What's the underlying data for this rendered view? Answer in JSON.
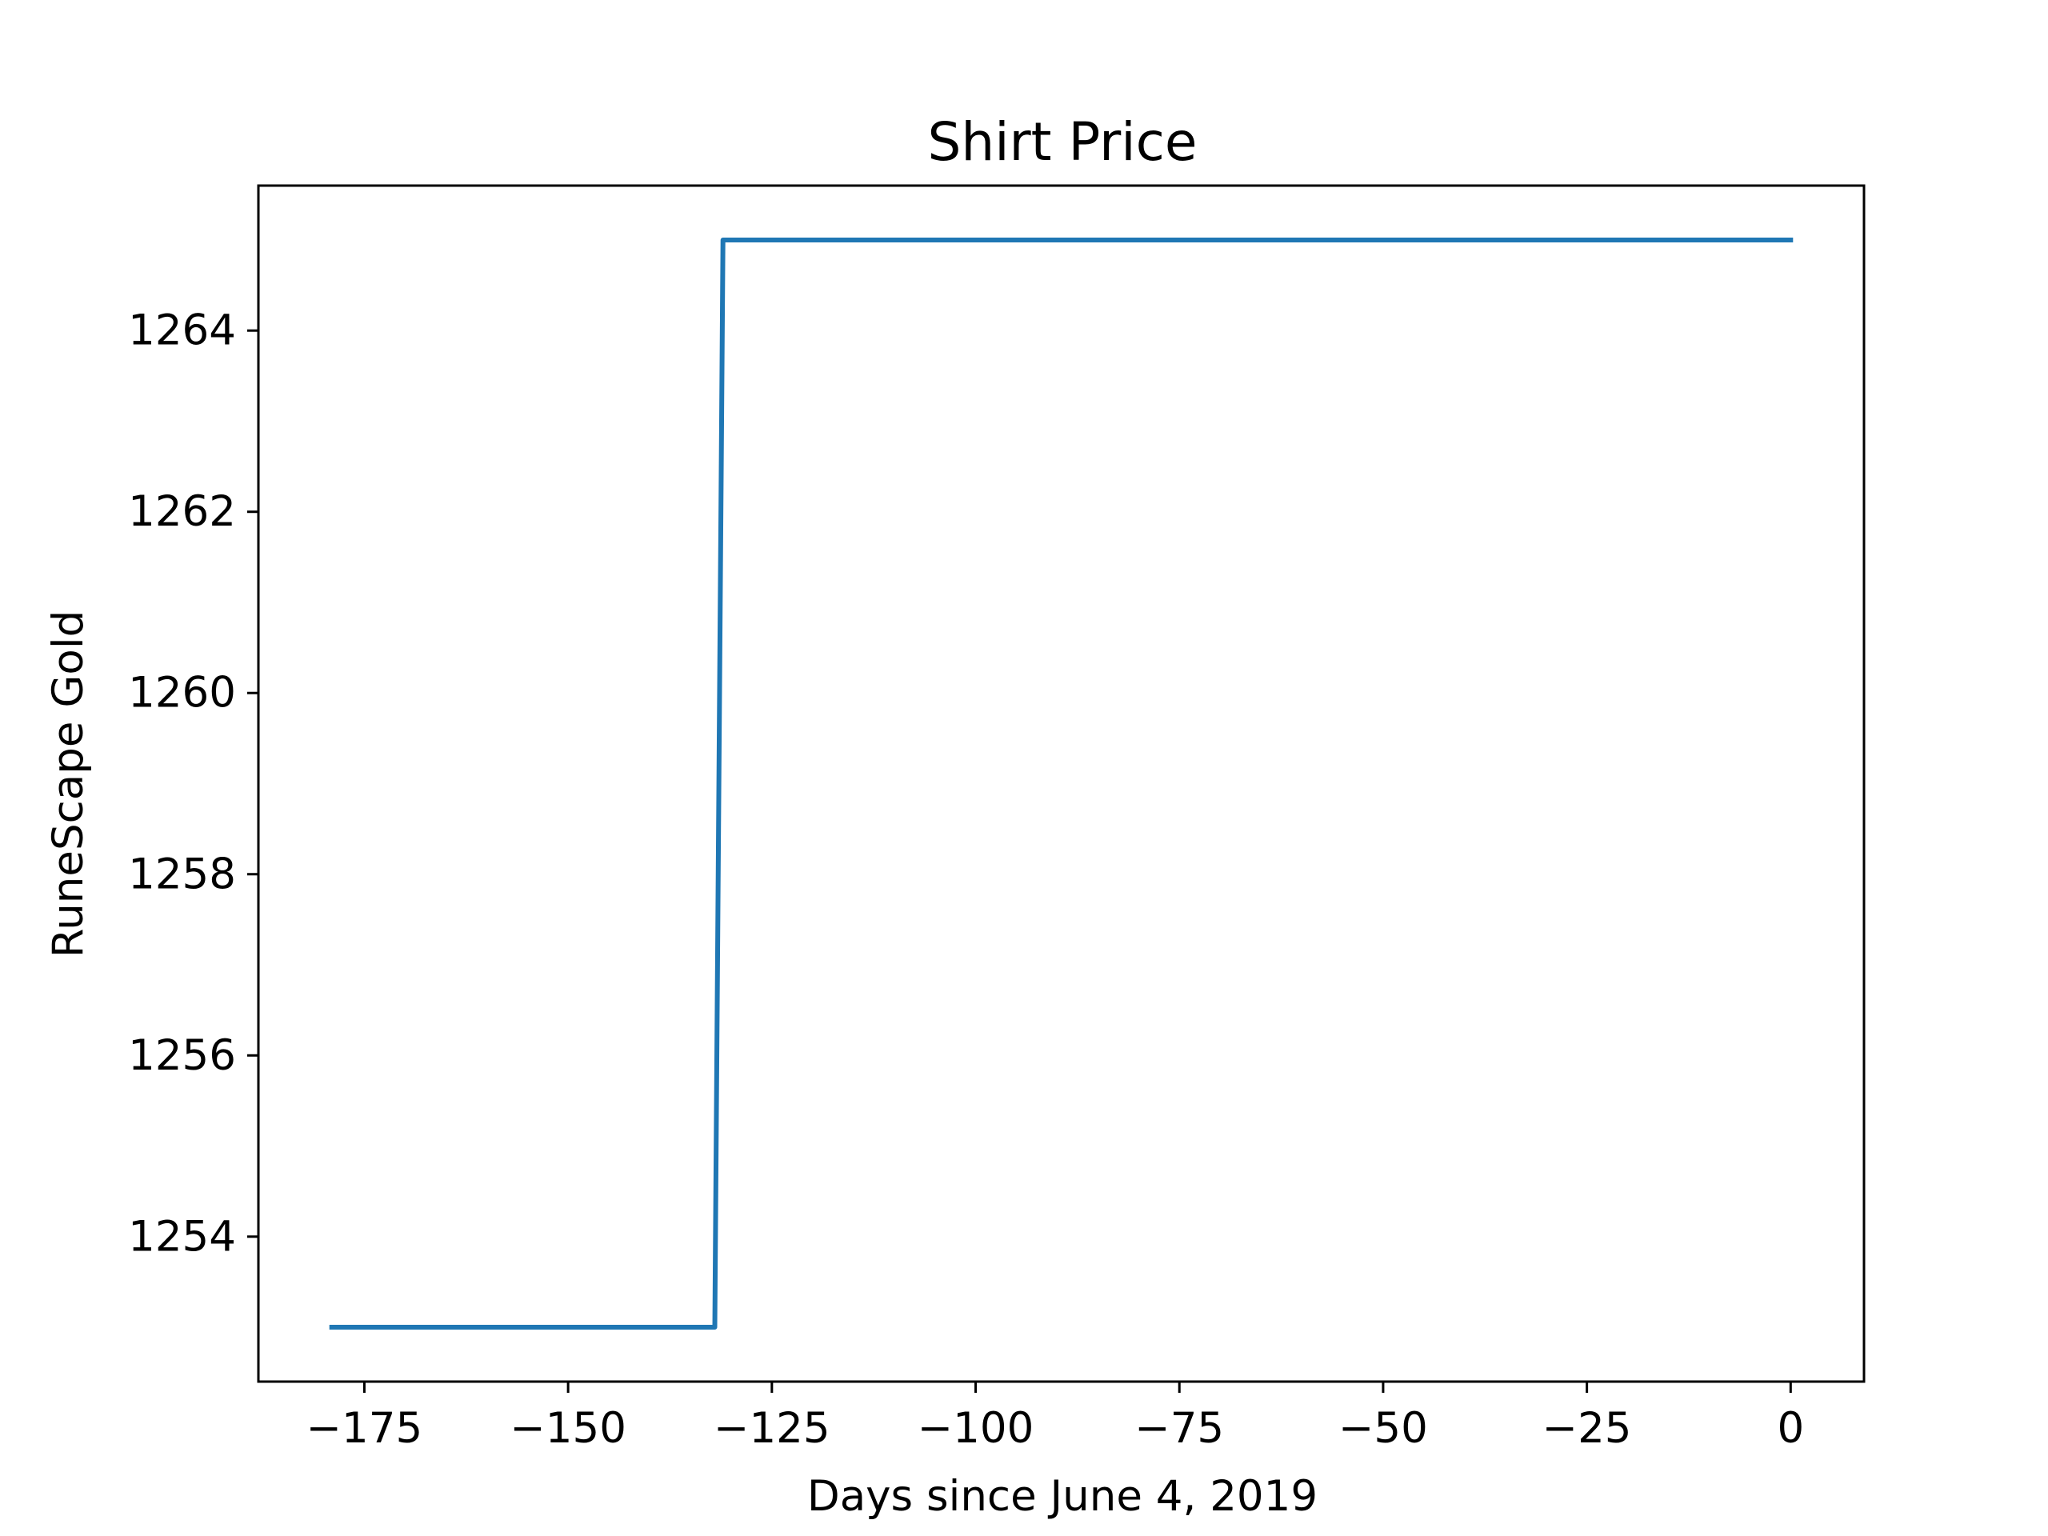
{
  "chart_data": {
    "type": "line",
    "title": "Shirt Price",
    "xlabel": "Days since June 4, 2019",
    "ylabel": "RuneScape Gold",
    "xlim": [
      -188,
      9
    ],
    "ylim": [
      1252.4,
      1265.6
    ],
    "x_ticks": [
      -175,
      -150,
      -125,
      -100,
      -75,
      -50,
      -25,
      0
    ],
    "x_tick_labels": [
      "−175",
      "−150",
      "−125",
      "−100",
      "−75",
      "−50",
      "−25",
      "0"
    ],
    "y_ticks": [
      1254,
      1256,
      1258,
      1260,
      1262,
      1264
    ],
    "y_tick_labels": [
      "1254",
      "1256",
      "1258",
      "1260",
      "1262",
      "1264"
    ],
    "grid": false,
    "series": [
      {
        "color": "#1f77b4",
        "x": [
          -179,
          -132,
          -131,
          0
        ],
        "y": [
          1253,
          1253,
          1265,
          1265
        ]
      }
    ]
  }
}
